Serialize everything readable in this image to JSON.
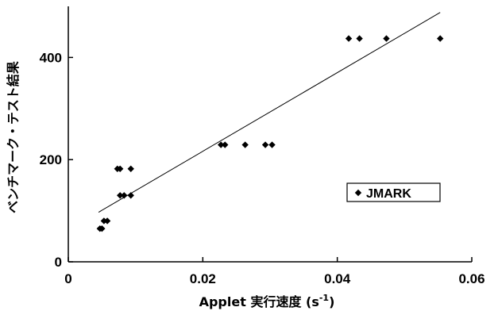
{
  "chart_data": {
    "type": "scatter",
    "xlabel": "Applet 実行速度 (s",
    "xlabel_superscript": "-1",
    "xlabel_suffix": ")",
    "ylabel": "ベンチマーク・テスト結果",
    "xlim": [
      0,
      0.06
    ],
    "ylim": [
      0,
      500
    ],
    "x_ticks": [
      0,
      0.02,
      0.04,
      0.06
    ],
    "x_tick_labels": [
      "0",
      "0.02",
      "0.04",
      "0.06"
    ],
    "y_ticks": [
      0,
      200,
      400
    ],
    "y_tick_labels": [
      "0",
      "200",
      "400"
    ],
    "grid": false,
    "legend_position": "lower-right",
    "series": [
      {
        "name": "JMARK",
        "marker": "diamond",
        "color": "#000000",
        "points": [
          [
            0.0047,
            65
          ],
          [
            0.005,
            65
          ],
          [
            0.0053,
            80
          ],
          [
            0.0058,
            80
          ],
          [
            0.0073,
            182
          ],
          [
            0.0077,
            182
          ],
          [
            0.0093,
            182
          ],
          [
            0.0077,
            130
          ],
          [
            0.0083,
            130
          ],
          [
            0.0093,
            130
          ],
          [
            0.0227,
            229
          ],
          [
            0.0233,
            229
          ],
          [
            0.0263,
            229
          ],
          [
            0.0293,
            229
          ],
          [
            0.0303,
            229
          ],
          [
            0.0417,
            437
          ],
          [
            0.0433,
            437
          ],
          [
            0.0473,
            437
          ],
          [
            0.0553,
            437
          ]
        ]
      }
    ],
    "trendline": {
      "type": "linear",
      "x": [
        0.0045,
        0.0553
      ],
      "y": [
        97,
        488
      ]
    }
  }
}
